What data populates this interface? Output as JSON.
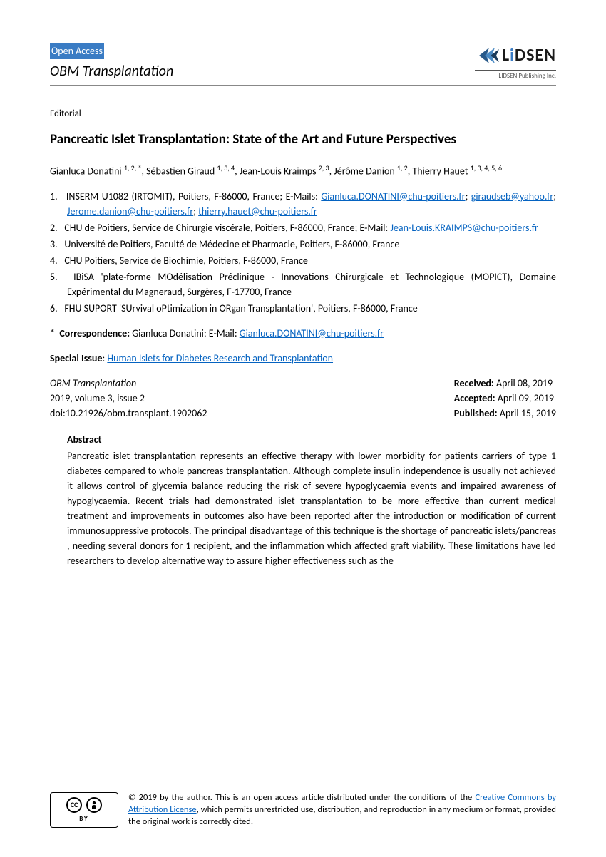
{
  "header": {
    "open_access": "Open Access",
    "journal": "OBM Transplantation",
    "publisher_name": "LiDSEN",
    "publisher_sub": "LIDSEN Publishing Inc."
  },
  "article": {
    "type": "Editorial",
    "title": "Pancreatic Islet Transplantation: State of the Art and Future Perspectives",
    "authors_html": "Gianluca Donatini <sup>1, 2, *</sup>, Sébastien Giraud <sup>1, 3, 4</sup>, Jean-Louis Kraimps <sup>2, 3</sup>, Jérôme Danion <sup>1, 2</sup>, Thierry Hauet <sup>1, 3, 4, 5, 6</sup>"
  },
  "affiliations": [
    {
      "n": "1.",
      "pre": "INSERM U1082 (IRTOMIT), Poitiers, F-86000, France; E-Mails: ",
      "links": [
        "Gianluca.DONATINI@chu-poitiers.fr",
        "giraudseb@yahoo.fr",
        "Jerome.danion@chu-poitiers.fr",
        "thierry.hauet@chu-poitiers.fr"
      ]
    },
    {
      "n": "2.",
      "pre": "CHU de Poitiers, Service de Chirurgie viscérale, Poitiers, F-86000, France; E-Mail: ",
      "links": [
        "Jean-Louis.KRAIMPS@chu-poitiers.fr"
      ]
    },
    {
      "n": "3.",
      "pre": "Université de Poitiers, Faculté de Médecine et Pharmacie, Poitiers, F-86000, France",
      "links": []
    },
    {
      "n": "4.",
      "pre": "CHU Poitiers, Service de Biochimie, Poitiers, F-86000, France",
      "links": []
    },
    {
      "n": "5.",
      "pre": "IBiSA 'plate-forme MOdélisation Préclinique - Innovations Chirurgicale et Technologique (MOPICT), Domaine Expérimental du Magneraud, Surgères, F-17700, France",
      "links": []
    },
    {
      "n": "6.",
      "pre": "FHU SUPORT 'SUrvival oPtimization in ORgan Transplantation', Poitiers, F-86000, France",
      "links": []
    }
  ],
  "correspondence": {
    "label": "Correspondence:",
    "text": " Gianluca Donatini; E-Mail: ",
    "email": "Gianluca.DONATINI@chu-poitiers.fr"
  },
  "special_issue": {
    "label": "Special Issue",
    "link": "Human Islets for Diabetes Research and Transplantation"
  },
  "meta": {
    "journal": "OBM Transplantation",
    "volume": "2019, volume 3, issue 2",
    "doi": "doi:10.21926/obm.transplant.1902062",
    "received_label": "Received:",
    "received": " April 08, 2019",
    "accepted_label": "Accepted:",
    "accepted": " April 09, 2019",
    "published_label": "Published:",
    "published": " April 15, 2019"
  },
  "abstract": {
    "heading": "Abstract",
    "text": "Pancreatic islet transplantation represents an effective therapy with lower morbidity for patients carriers of type 1 diabetes compared to whole pancreas transplantation. Although complete insulin independence is usually not achieved it allows control of glycemia balance reducing the risk of severe hypoglycaemia events and impaired awareness of hypoglycaemia. Recent trials had demonstrated islet transplantation to be more effective than current medical treatment and improvements in outcomes also have been reported after the introduction or modification of current immunosuppressive protocols. The principal disadvantage of this technique is the shortage of pancreatic islets/pancreas , needing several donors for 1 recipient, and the inflammation which affected graft viability. These limitations have led researchers to develop alternative way to assure higher effectiveness such as the"
  },
  "license": {
    "pre": "© 2019 by the author. This is an open access article distributed under the conditions of the ",
    "link": "Creative Commons by Attribution License",
    "post": ", which permits unrestricted use, distribution, and reproduction in any medium or format, provided the original work is correctly cited.",
    "by": "BY",
    "cc": "CC"
  },
  "colors": {
    "link": "#0563c1",
    "badge_bg": "#3a7cc4"
  }
}
